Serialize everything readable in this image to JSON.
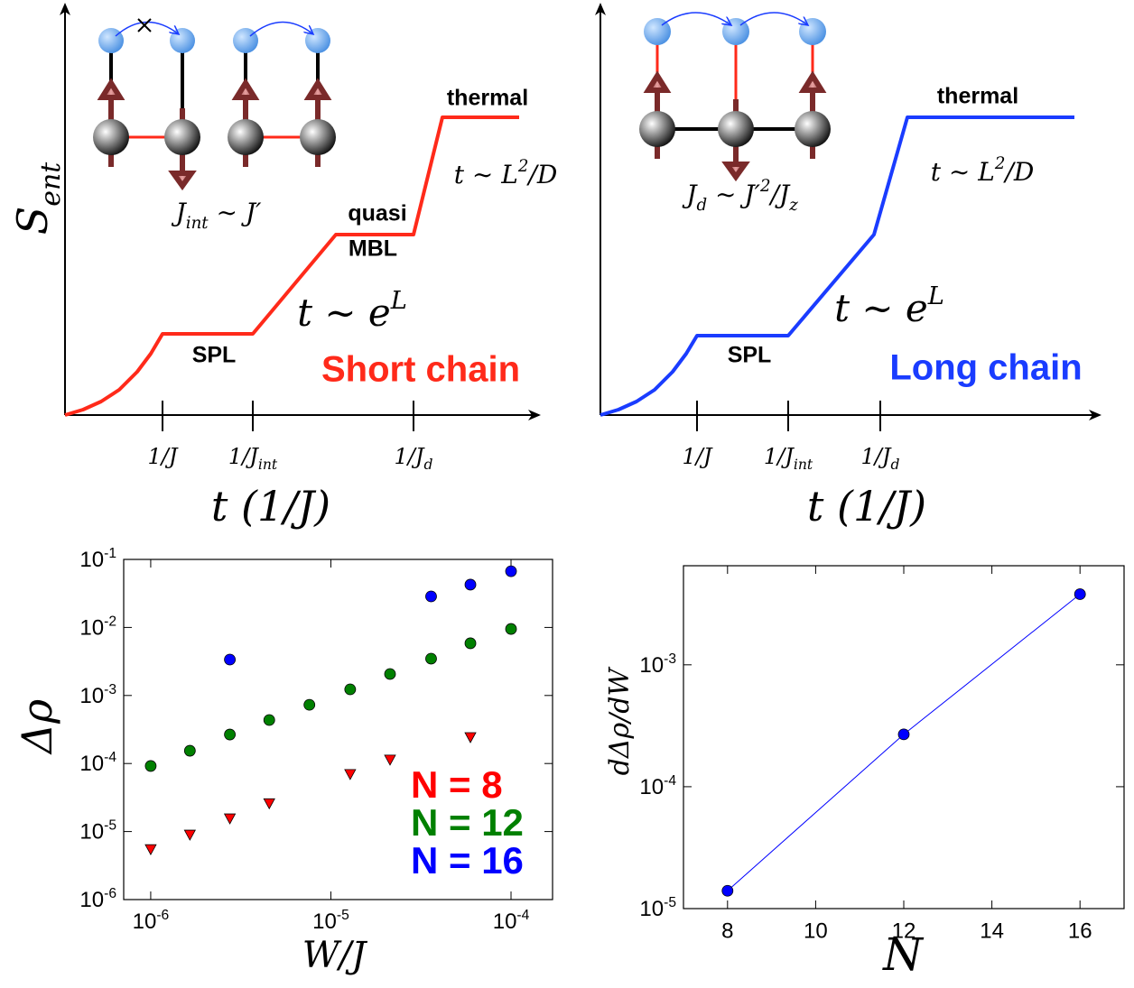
{
  "chart_data": [
    {
      "type": "line",
      "xlabel": "t (1/J)",
      "ylabel": [
        {
          "text": "S"
        },
        {
          "sub": "ent"
        }
      ],
      "x": [
        0,
        20,
        40,
        60,
        80,
        95,
        108,
        208,
        300,
        386,
        418,
        503
      ],
      "values": [
        0,
        6,
        15,
        28,
        48,
        68,
        90,
        90,
        200,
        200,
        330,
        330
      ],
      "color": "#ff2a1a",
      "xlim": [
        0,
        525
      ],
      "ylim": [
        0,
        455
      ],
      "xticks": [
        {
          "value": 108,
          "label": [
            {
              "text": "1/J"
            }
          ]
        },
        {
          "value": 208,
          "label": [
            {
              "text": "1/J"
            },
            {
              "sub": "int"
            }
          ]
        },
        {
          "value": 386,
          "label": [
            {
              "text": "1/J"
            },
            {
              "sub": "d"
            }
          ]
        }
      ],
      "annotations": [
        {
          "text": "thermal"
        },
        {
          "text": [
            {
              "text": "t ∼ L"
            },
            {
              "sup": "2"
            },
            {
              "text": "/D"
            }
          ]
        },
        {
          "text": "quasi"
        },
        {
          "text": "MBL"
        },
        {
          "text": [
            {
              "text": "t ∼ e"
            },
            {
              "sup": "L"
            }
          ]
        },
        {
          "text": "SPL"
        },
        {
          "text": "Short chain",
          "color": "#ff2a1a"
        },
        {
          "text": [
            {
              "text": "J"
            },
            {
              "sub": "int"
            },
            {
              "text": " ∼ J′"
            }
          ]
        }
      ]
    },
    {
      "type": "line",
      "xlabel": "t (1/J)",
      "x": [
        0,
        20,
        40,
        60,
        80,
        95,
        107,
        208,
        303,
        340,
        525
      ],
      "values": [
        0,
        6,
        15,
        28,
        48,
        68,
        88,
        88,
        200,
        330,
        330
      ],
      "color": "#1a3cff",
      "xlim": [
        0,
        553
      ],
      "ylim": [
        0,
        455
      ],
      "xticks": [
        {
          "value": 107,
          "label": [
            {
              "text": "1/J"
            }
          ]
        },
        {
          "value": 208,
          "label": [
            {
              "text": "1/J"
            },
            {
              "sub": "int"
            }
          ]
        },
        {
          "value": 310,
          "label": [
            {
              "text": "1/J"
            },
            {
              "sub": "d"
            }
          ]
        }
      ],
      "annotations": [
        {
          "text": "thermal"
        },
        {
          "text": [
            {
              "text": "t ∼ L"
            },
            {
              "sup": "2"
            },
            {
              "text": "/D"
            }
          ]
        },
        {
          "text": [
            {
              "text": "t ∼ e"
            },
            {
              "sup": "L"
            }
          ]
        },
        {
          "text": "SPL"
        },
        {
          "text": "Long chain",
          "color": "#1a3cff"
        },
        {
          "text": [
            {
              "text": "J"
            },
            {
              "sub": "d"
            },
            {
              "text": " ∼ J′"
            },
            {
              "sup": "2"
            },
            {
              "text": "/J"
            },
            {
              "sub": "z"
            }
          ]
        }
      ]
    },
    {
      "type": "scatter",
      "xlabel": "W/J",
      "ylabel": "Δρ",
      "xscale": "log",
      "yscale": "log",
      "xlim": [
        7.08e-07,
        0.00017
      ],
      "ylim": [
        1e-06,
        0.1
      ],
      "xticks": [
        {
          "value": 1e-06,
          "label": [
            {
              "text": "10"
            },
            {
              "sup": "-6"
            }
          ]
        },
        {
          "value": 1e-05,
          "label": [
            {
              "text": "10"
            },
            {
              "sup": "-5"
            }
          ]
        },
        {
          "value": 0.0001,
          "label": [
            {
              "text": "10"
            },
            {
              "sup": "-4"
            }
          ]
        }
      ],
      "yticks": [
        {
          "value": 1e-06,
          "label": [
            {
              "text": "10"
            },
            {
              "sup": "-6"
            }
          ]
        },
        {
          "value": 1e-05,
          "label": [
            {
              "text": "10"
            },
            {
              "sup": "-5"
            }
          ]
        },
        {
          "value": 0.0001,
          "label": [
            {
              "text": "10"
            },
            {
              "sup": "-4"
            }
          ]
        },
        {
          "value": 0.001,
          "label": [
            {
              "text": "10"
            },
            {
              "sup": "-3"
            }
          ]
        },
        {
          "value": 0.01,
          "label": [
            {
              "text": "10"
            },
            {
              "sup": "-2"
            }
          ]
        },
        {
          "value": 0.1,
          "label": [
            {
              "text": "10"
            },
            {
              "sup": "-1"
            }
          ]
        }
      ],
      "series": [
        {
          "name": "N = 8",
          "color": "#ff0000",
          "marker": "triangle",
          "x": [
            1e-06,
            1.65e-06,
            2.75e-06,
            4.55e-06,
            1.28e-05,
            2.13e-05,
            5.95e-05
          ],
          "values": [
            5.5e-06,
            9e-06,
            1.56e-05,
            2.6e-05,
            7e-05,
            0.000114,
            0.000244
          ]
        },
        {
          "name": "N = 12",
          "color": "#008000",
          "marker": "circle",
          "x": [
            1e-06,
            1.65e-06,
            2.75e-06,
            4.55e-06,
            7.6e-06,
            1.28e-05,
            2.13e-05,
            3.6e-05,
            5.95e-05,
            0.0001
          ],
          "values": [
            9.2e-05,
            0.000154,
            0.000267,
            0.000436,
            0.00073,
            0.00123,
            0.00207,
            0.00348,
            0.00585,
            0.0095
          ]
        },
        {
          "name": "N = 16",
          "color": "#0000ff",
          "marker": "circle",
          "x": [
            2.75e-06,
            3.6e-05,
            5.95e-05,
            0.0001
          ],
          "values": [
            0.00337,
            0.0286,
            0.0426,
            0.067
          ]
        }
      ]
    },
    {
      "type": "line",
      "xlabel": "N",
      "ylabel": "dΔρ/dW",
      "yscale": "log",
      "marker": "circle",
      "x": [
        8,
        12,
        16
      ],
      "values": [
        1.4e-05,
        0.000269,
        0.0038
      ],
      "color": "#0000ff",
      "xlim": [
        7,
        17
      ],
      "ylim": [
        1e-05,
        0.0065
      ],
      "xticks": [
        8,
        10,
        12,
        14,
        16
      ],
      "yticks": [
        {
          "value": 1e-05,
          "label": [
            {
              "text": "10"
            },
            {
              "sup": "-5"
            }
          ]
        },
        {
          "value": 0.0001,
          "label": [
            {
              "text": "10"
            },
            {
              "sup": "-4"
            }
          ]
        },
        {
          "value": 0.001,
          "label": [
            {
              "text": "10"
            },
            {
              "sup": "-3"
            }
          ]
        }
      ]
    }
  ]
}
